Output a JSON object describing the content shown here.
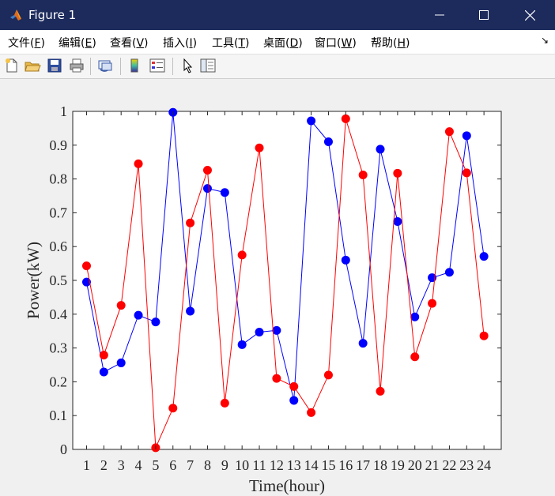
{
  "window": {
    "title": "Figure 1",
    "minimize_icon": "minimize-icon",
    "maximize_icon": "maximize-icon",
    "close_icon": "close-icon"
  },
  "menu": {
    "items": [
      {
        "label": "文件(",
        "key": "F",
        "tail": ")"
      },
      {
        "label": "编辑(",
        "key": "E",
        "tail": ")"
      },
      {
        "label": "查看(",
        "key": "V",
        "tail": ")"
      },
      {
        "label": "插入(",
        "key": "I",
        "tail": ")"
      },
      {
        "label": "工具(",
        "key": "T",
        "tail": ")"
      },
      {
        "label": "桌面(",
        "key": "D",
        "tail": ")"
      },
      {
        "label": "窗口(",
        "key": "W",
        "tail": ")"
      },
      {
        "label": "帮助(",
        "key": "H",
        "tail": ")"
      }
    ],
    "end_glyph": "↘"
  },
  "toolbar": {
    "icons": [
      "new-figure-icon",
      "open-file-icon",
      "save-icon",
      "print-icon",
      "link-plot-icon",
      "colorbar-icon",
      "legend-icon",
      "pointer-icon",
      "property-editor-icon"
    ]
  },
  "chart_data": {
    "type": "line",
    "title": "",
    "xlabel": "Time(hour)",
    "ylabel": "Power(kW)",
    "x": [
      1,
      2,
      3,
      4,
      5,
      6,
      7,
      8,
      9,
      10,
      11,
      12,
      13,
      14,
      15,
      16,
      17,
      18,
      19,
      20,
      21,
      22,
      23,
      24
    ],
    "xlim": [
      0.2,
      25
    ],
    "ylim": [
      0,
      1
    ],
    "yticks": [
      0,
      0.1,
      0.2,
      0.3,
      0.4,
      0.5,
      0.6,
      0.7,
      0.8,
      0.9,
      1
    ],
    "ytick_labels": [
      "0",
      "0.1",
      "0.2",
      "0.3",
      "0.4",
      "0.5",
      "0.6",
      "0.7",
      "0.8",
      "0.9",
      "1"
    ],
    "xtick_labels": [
      "1",
      "2",
      "3",
      "4",
      "5",
      "6",
      "7",
      "8",
      "9",
      "10",
      "11",
      "12",
      "13",
      "14",
      "15",
      "16",
      "17",
      "18",
      "19",
      "20",
      "21",
      "22",
      "23",
      "24"
    ],
    "grid": false,
    "series": [
      {
        "color": "#0000ff",
        "values": [
          0.495,
          0.229,
          0.256,
          0.397,
          0.377,
          0.997,
          0.409,
          0.772,
          0.76,
          0.31,
          0.347,
          0.352,
          0.145,
          0.972,
          0.91,
          0.56,
          0.314,
          0.888,
          0.674,
          0.392,
          0.508,
          0.524,
          0.928,
          0.571
        ]
      },
      {
        "color": "#ff0000",
        "values": [
          0.543,
          0.279,
          0.426,
          0.845,
          0.005,
          0.122,
          0.67,
          0.826,
          0.137,
          0.575,
          0.892,
          0.21,
          0.186,
          0.109,
          0.22,
          0.978,
          0.812,
          0.172,
          0.817,
          0.274,
          0.432,
          0.94,
          0.818,
          0.336
        ]
      }
    ]
  }
}
